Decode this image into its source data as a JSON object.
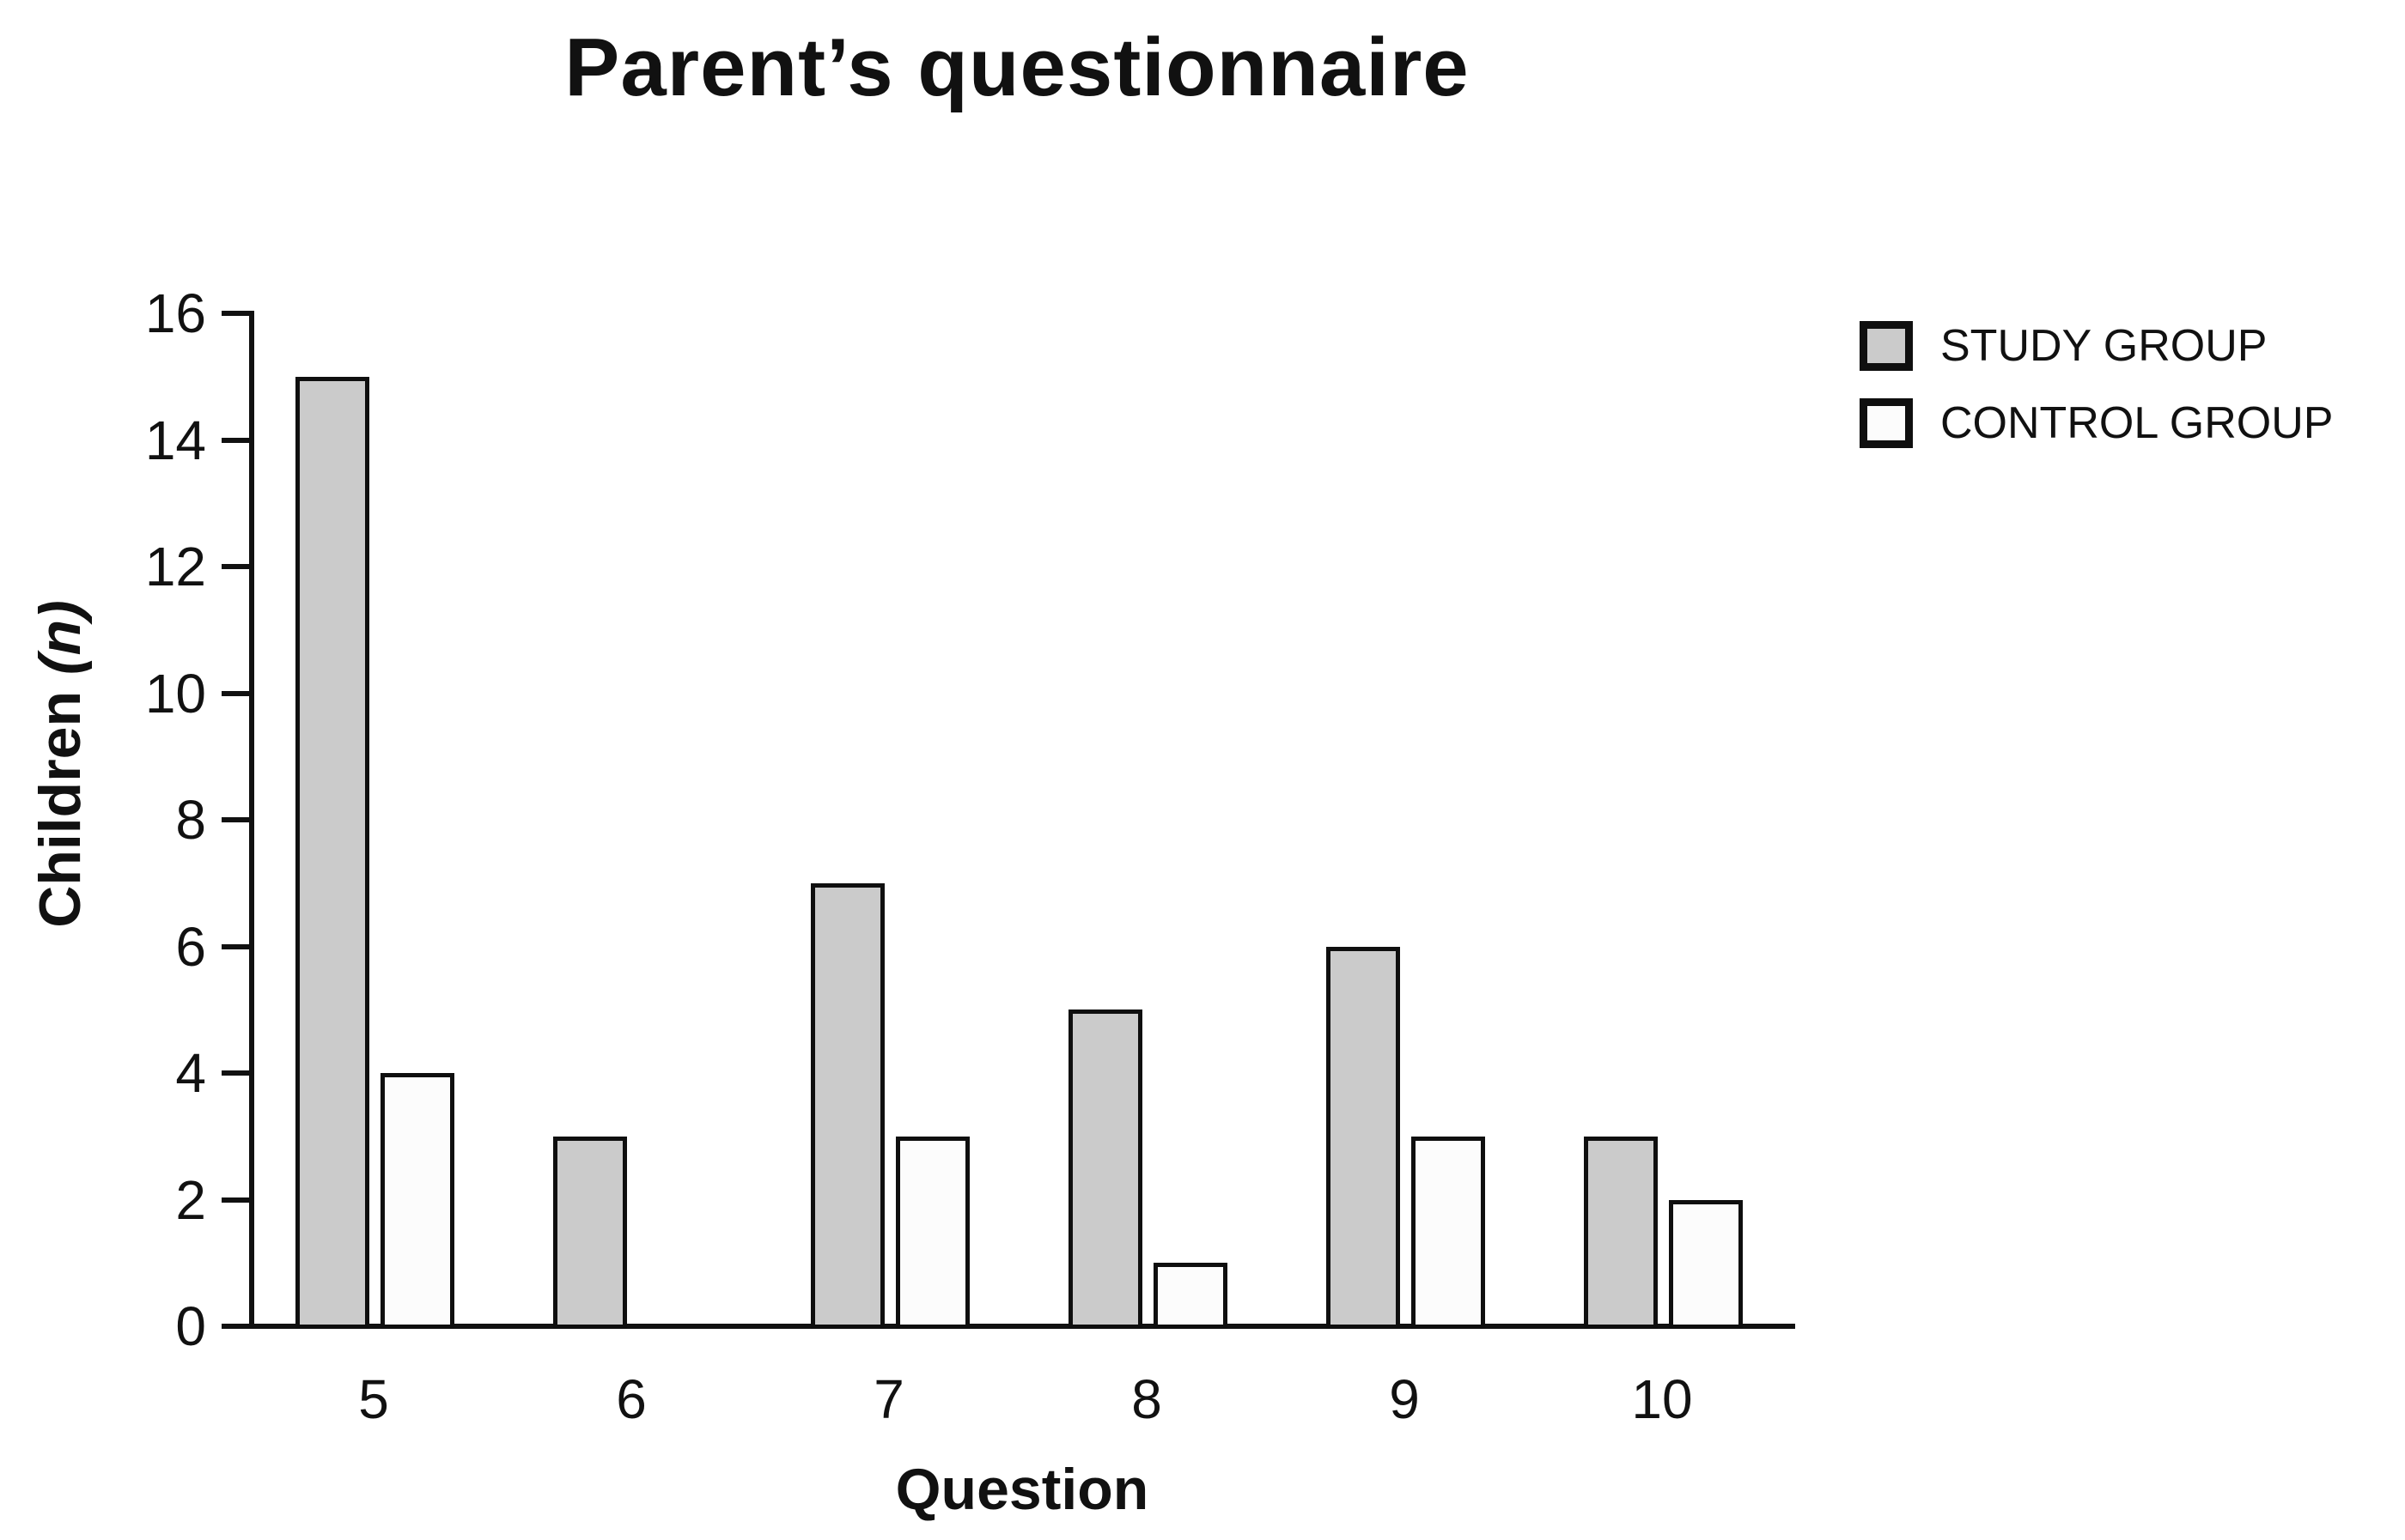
{
  "chart_data": {
    "type": "bar",
    "title": "Parent’s questionnaire",
    "xlabel": "Question",
    "ylabel": "Children (n)",
    "ylabel_text": "Children ",
    "ylabel_italic_part": "(n)",
    "categories": [
      "5",
      "6",
      "7",
      "8",
      "9",
      "10"
    ],
    "series": [
      {
        "name": "STUDY GROUP",
        "color": "#cbcbcb",
        "values": [
          15,
          3,
          7,
          5,
          6,
          3
        ]
      },
      {
        "name": "CONTROL GROUP",
        "color": "#fcfcfc",
        "values": [
          4,
          0,
          3,
          1,
          3,
          2
        ]
      }
    ],
    "ylim": [
      0,
      16
    ],
    "ytick_step": 2,
    "grid": false,
    "legend_position": "top-right",
    "axis_color": "#111111",
    "bar_border_color": "#0f0f0f"
  }
}
